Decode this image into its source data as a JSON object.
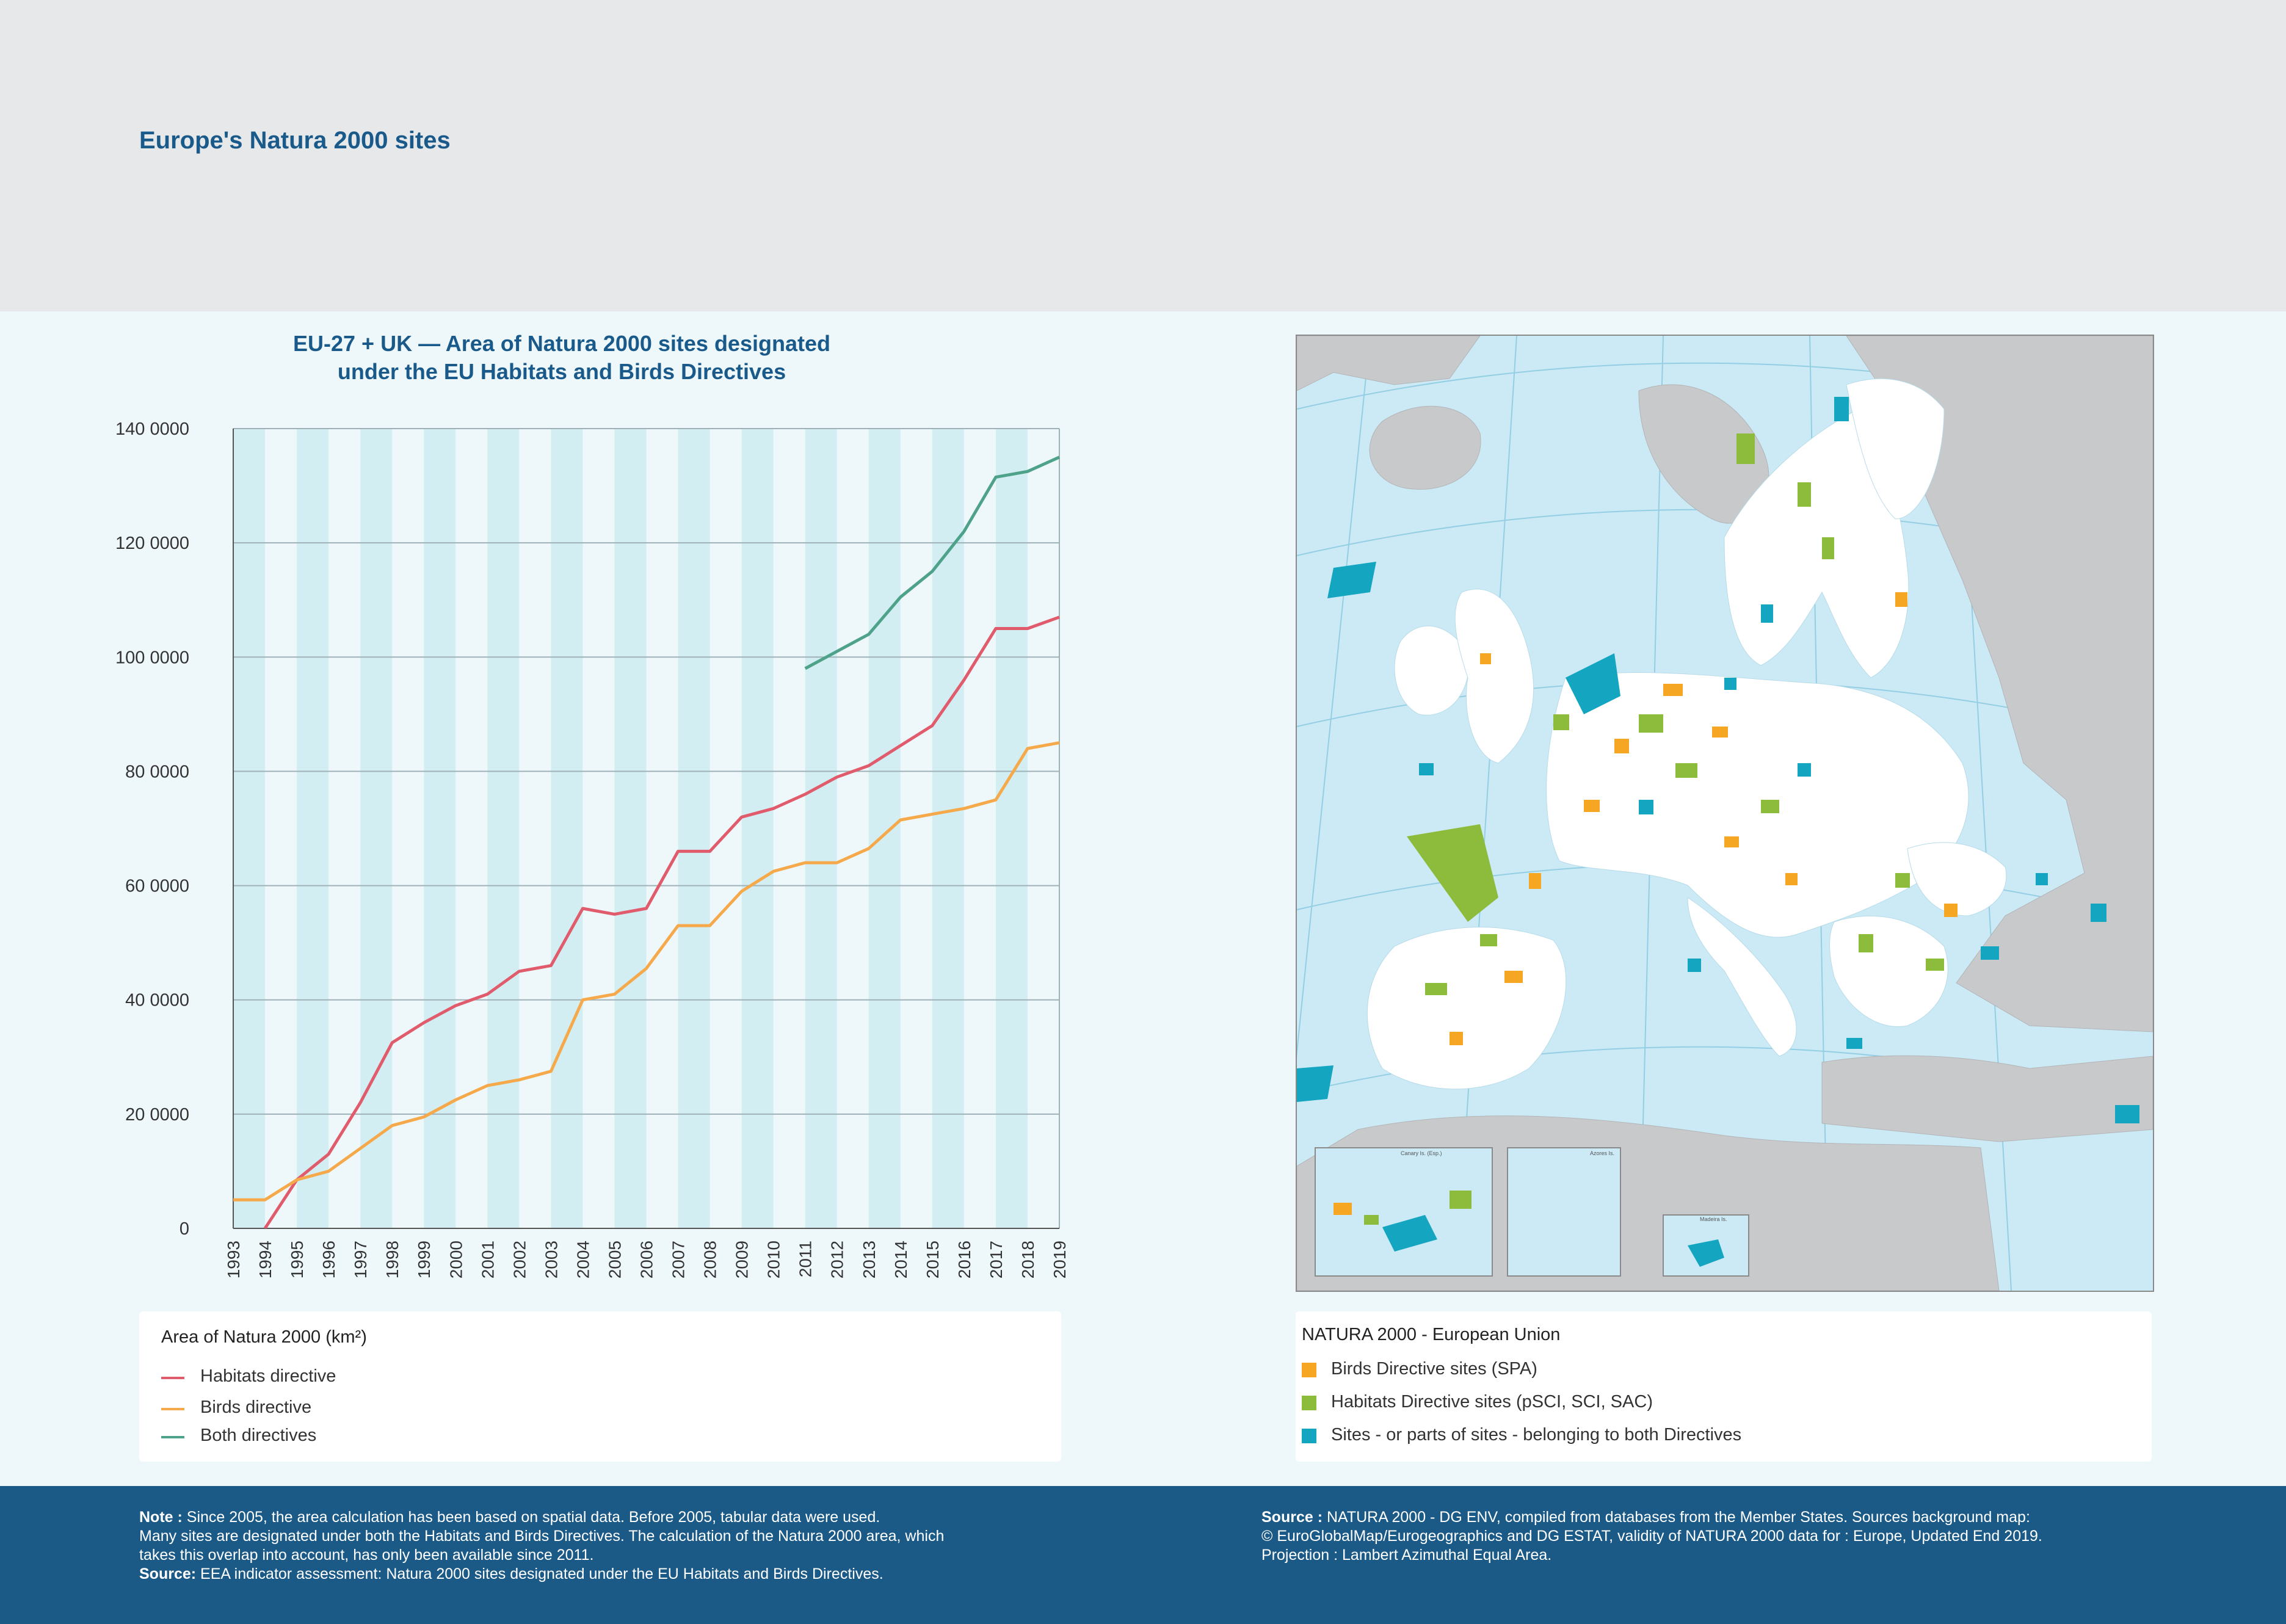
{
  "page_title": "Europe's Natura 2000 sites",
  "chart": {
    "title_line1": "EU-27 + UK — Area of Natura 2000 sites designated",
    "title_line2": "under the EU Habitats and Birds Directives"
  },
  "chart_data": {
    "type": "line",
    "title": "EU-27 + UK — Area of Natura 2000 sites designated under the EU Habitats and Birds Directives",
    "x": [
      "1993",
      "1994",
      "1995",
      "1996",
      "1997",
      "1998",
      "1999",
      "2000",
      "2001",
      "2002",
      "2003",
      "2004",
      "2005",
      "2006",
      "2007",
      "2008",
      "2009",
      "2010",
      "2011",
      "2012",
      "2013",
      "2014",
      "2015",
      "2016",
      "2017",
      "2018",
      "2019"
    ],
    "y_ticks": [
      0,
      20000,
      40000,
      60000,
      80000,
      100000,
      120000,
      140000
    ],
    "y_tick_labels": [
      "0",
      "20 0000",
      "40 0000",
      "60 0000",
      "80 0000",
      "100 0000",
      "120 0000",
      "140 0000"
    ],
    "ylim": [
      0,
      140000
    ],
    "grid": "horizontal lines, alternating vertical bands",
    "legend_title": "Area of Natura 2000 (km²)",
    "series": [
      {
        "name": "Habitats directive",
        "color": "#e05c6c",
        "values": [
          null,
          0,
          8500,
          13000,
          22000,
          32500,
          36000,
          39000,
          41000,
          45000,
          46000,
          56000,
          55000,
          56000,
          66000,
          66000,
          72000,
          73500,
          76000,
          79000,
          81000,
          84500,
          88000,
          96000,
          105000,
          105000,
          107000
        ]
      },
      {
        "name": "Birds directive",
        "color": "#f5a94b",
        "values": [
          5000,
          5000,
          8500,
          10000,
          14000,
          18000,
          19500,
          22500,
          25000,
          26000,
          27500,
          40000,
          41000,
          45500,
          53000,
          53000,
          59000,
          62500,
          64000,
          64000,
          66500,
          71500,
          72500,
          73500,
          75000,
          84000,
          85000
        ]
      },
      {
        "name": "Both directives",
        "color": "#4ea28a",
        "values": [
          null,
          null,
          null,
          null,
          null,
          null,
          null,
          null,
          null,
          null,
          null,
          null,
          null,
          null,
          null,
          null,
          null,
          null,
          98000,
          101000,
          104000,
          110500,
          115000,
          122000,
          131500,
          132500,
          135000
        ]
      }
    ]
  },
  "map_legend": {
    "title": "NATURA 2000 - European Union",
    "items": [
      {
        "label": "Birds Directive sites (SPA)",
        "color": "#f5a623"
      },
      {
        "label": "Habitats Directive sites (pSCI, SCI, SAC)",
        "color": "#8dbb3c"
      },
      {
        "label": "Sites - or parts of sites - belonging to both Directives",
        "color": "#14a5c0"
      }
    ]
  },
  "map_insets": [
    "Canary Is. (Esp.)",
    "Azores Is.",
    "Madeira Is."
  ],
  "footer": {
    "note_label": "Note :",
    "note_text": "Since 2005, the area calculation has been based on spatial data. Before 2005, tabular data were used.",
    "note_line2": "Many sites are designated under both the Habitats and Birds Directives. The calculation of the Natura 2000 area, which",
    "note_line3": "takes this overlap into account, has only been available since 2011.",
    "source_left_label": "Source:",
    "source_left_text": "EEA indicator assessment: Natura 2000 sites designated under the EU Habitats and Birds Directives.",
    "source_right_label": "Source :",
    "source_right_text": "NATURA 2000 - DG ENV, compiled from databases from the Member States. Sources background map:",
    "source_right_line2": "© EuroGlobalMap/Eurogeographics and DG ESTAT, validity of NATURA 2000 data for : Europe, Updated End 2019.",
    "source_right_line3": "Projection : Lambert Azimuthal Equal Area."
  }
}
